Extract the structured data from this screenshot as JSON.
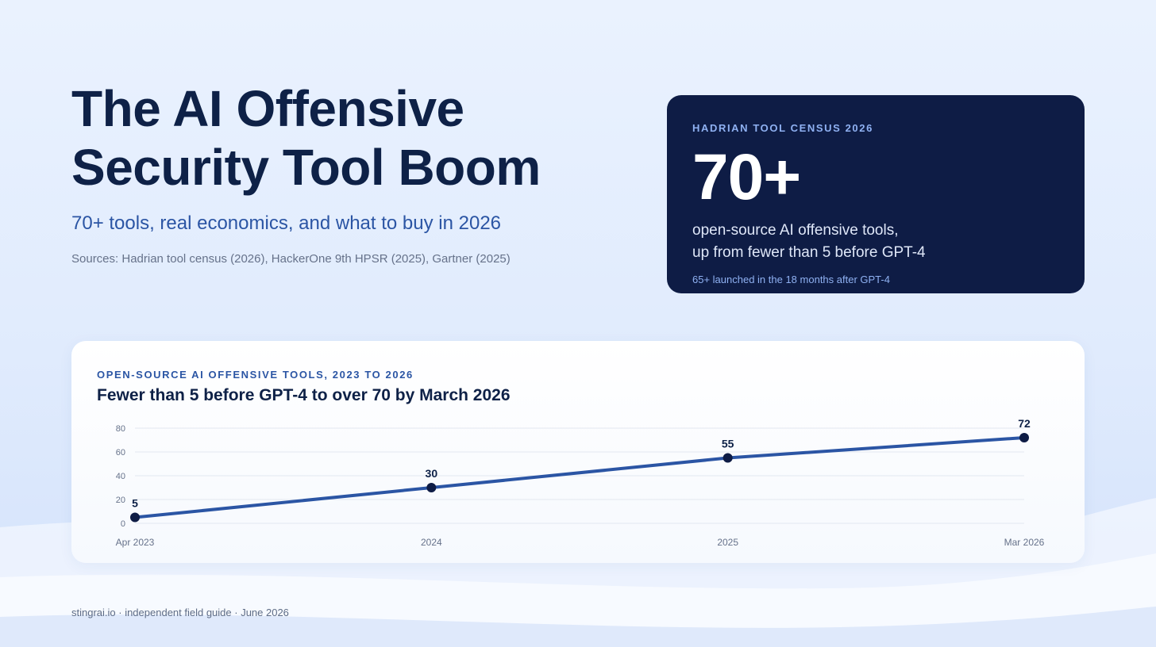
{
  "hero": {
    "title": "The AI Offensive\nSecurity Tool Boom",
    "subtitle": "70+ tools, real economics, and what to buy in 2026",
    "sources": "Sources: Hadrian tool census (2026), HackerOne 9th HPSR (2025), Gartner (2025)"
  },
  "stat": {
    "kicker": "HADRIAN TOOL CENSUS 2026",
    "value": "70+",
    "description": "open-source AI offensive tools,\nup from fewer than 5 before GPT-4",
    "footnote": "65+ launched in the 18 months after GPT-4"
  },
  "chart": {
    "kicker": "OPEN-SOURCE AI OFFENSIVE TOOLS, 2023 TO 2026",
    "title": "Fewer than 5 before GPT-4 to over 70 by March 2026"
  },
  "chart_data": {
    "type": "line",
    "title": "Fewer than 5 before GPT-4 to over 70 by March 2026",
    "xlabel": "",
    "ylabel": "",
    "categories": [
      "Apr 2023",
      "2024",
      "2025",
      "Mar 2026"
    ],
    "values": [
      5,
      30,
      55,
      72
    ],
    "data_labels": [
      "5",
      "30",
      "55",
      "72"
    ],
    "ylim": [
      0,
      80
    ],
    "yticks": [
      0,
      20,
      40,
      60,
      80
    ],
    "grid": true,
    "legend": "none"
  },
  "colors": {
    "line": "#2b55a4",
    "marker": "#0e1c45",
    "grid": "#e3e8f0",
    "tick_text": "#66728a",
    "label_text": "#0e2147"
  },
  "footer": {
    "text": "stingrai.io · independent field guide · June 2026"
  }
}
